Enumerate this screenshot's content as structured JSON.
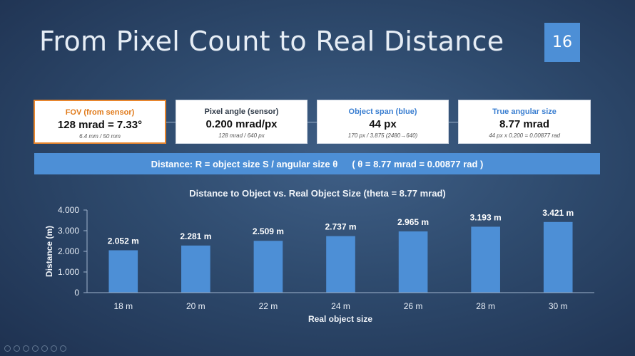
{
  "slide": {
    "title": "From Pixel Count to Real Distance",
    "page_number": "16"
  },
  "cards": [
    {
      "label": "FOV (from sensor)",
      "value": "128 mrad = 7.33°",
      "sub": "6.4 mm / 50 mm"
    },
    {
      "label": "Pixel angle (sensor)",
      "value": "0.200 mrad/px",
      "sub": "128 mrad / 640 px"
    },
    {
      "label": "Object span (blue)",
      "value": "44 px",
      "sub": "170 px / 3.875  (2480→640)"
    },
    {
      "label": "True angular size",
      "value": "8.77 mrad",
      "sub": "44 px x 0.200 = 0.00877 rad"
    }
  ],
  "banner": {
    "left": "Distance:  R = object size S / angular size θ",
    "right": "( θ = 8.77 mrad = 0.00877 rad )"
  },
  "colors": {
    "accent": "#4d8fd6",
    "first_card_border": "#e8862e",
    "bar": "#4d8fd6"
  },
  "chart_data": {
    "type": "bar",
    "title": "Distance to Object vs. Real Object Size  (theta = 8.77 mrad)",
    "xlabel": "Real object size",
    "ylabel": "Distance (m)",
    "categories": [
      "18 m",
      "20 m",
      "22 m",
      "24 m",
      "26 m",
      "28 m",
      "30 m"
    ],
    "values": [
      2.052,
      2.281,
      2.509,
      2.737,
      2.965,
      3.193,
      3.421
    ],
    "data_labels": [
      "2.052 m",
      "2.281 m",
      "2.509 m",
      "2.737 m",
      "2.965 m",
      "3.193 m",
      "3.421 m"
    ],
    "yticks": [
      "0",
      "1.000",
      "2.000",
      "3.000",
      "4.000"
    ],
    "ylim": [
      0,
      4
    ],
    "grid": false,
    "legend": "none"
  }
}
